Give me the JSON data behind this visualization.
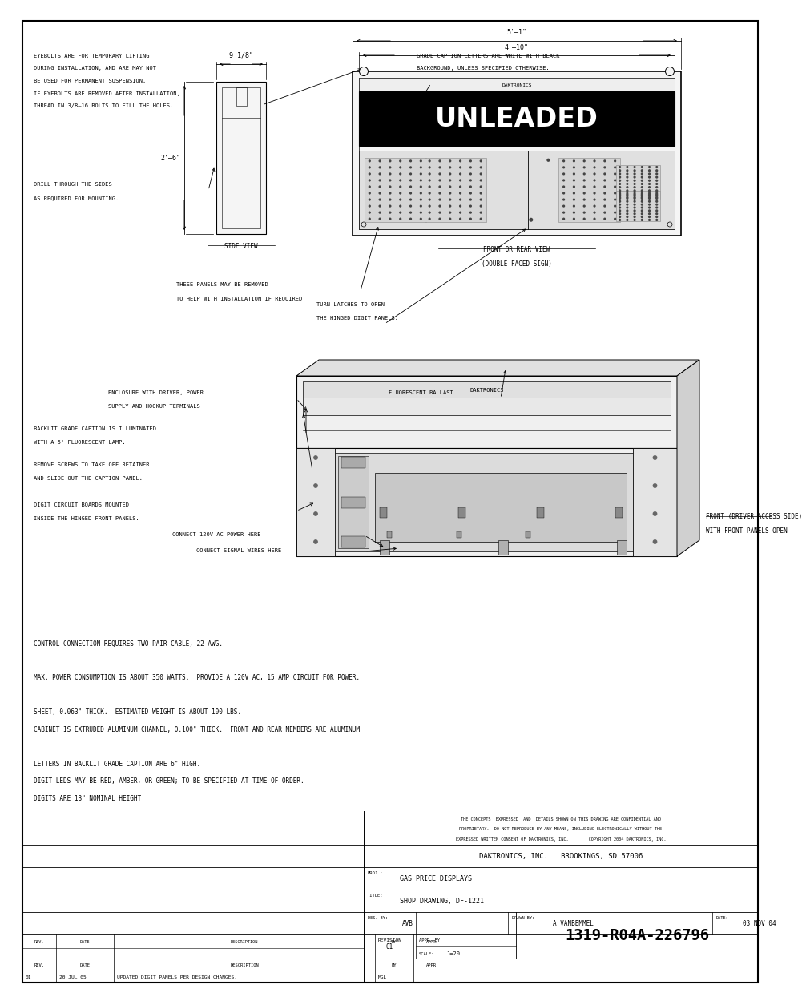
{
  "bg_color": "#ffffff",
  "line_color": "#000000",
  "text_color": "#000000",
  "page_width": 9.54,
  "page_height": 12.35,
  "title_block": {
    "confidential_text": "THE CONCEPTS  EXPRESSED  AND  DETAILS SHOWN ON THIS DRAWING ARE CONFIDENTIAL AND\nPROPRIETARY.  DO NOT REPRODUCE BY ANY MEANS, INCLUDING ELECTRONICALLY WITHOUT THE\nEXPRESSED WRITTEN CONSENT OF DAKTRONICS, INC.        COPYRIGHT 2004 DAKTRONICS, INC.",
    "company": "DAKTRONICS, INC.   BROOKINGS, SD 57006",
    "proj_label": "PROJ.:",
    "proj_value": "GAS PRICE DISPLAYS",
    "title_label": "TITLE:",
    "title_value": "SHOP DRAWING, DF-1221",
    "des_label": "DES. BY:",
    "des_value": "AVB",
    "drawn_label": "DRAWN BY:",
    "drawn_value": "A VANBEMMEL",
    "date_label": "DATE:",
    "date_value": "03 NOV 04",
    "rev_label": "REVISION",
    "rev_value": "01",
    "appr_label": "APPR. BY:",
    "scale_label": "SCALE:",
    "scale_value": "1=20",
    "drawing_num": "1319-R04A-226796",
    "rev_table_headers": [
      "REV.",
      "DATE",
      "DESCRIPTION",
      "BY",
      "APPR."
    ],
    "rev_row": [
      "01",
      "20 JUL 05",
      "UPDATED DIGIT PANELS PER DESIGN CHANGES.",
      "MGL",
      ""
    ]
  },
  "notes": [
    "DIGITS ARE 13\" NOMINAL HEIGHT.",
    "DIGIT LEDS MAY BE RED, AMBER, OR GREEN; TO BE SPECIFIED AT TIME OF ORDER.",
    "LETTERS IN BACKLIT GRADE CAPTION ARE 6\" HIGH.",
    "",
    "CABINET IS EXTRUDED ALUMINUM CHANNEL, 0.100\" THICK.  FRONT AND REAR MEMBERS ARE ALUMINUM",
    "SHEET, 0.063\" THICK.  ESTIMATED WEIGHT IS ABOUT 100 LBS.",
    "",
    "MAX. POWER CONSUMPTION IS ABOUT 350 WATTS.  PROVIDE A 120V AC, 15 AMP CIRCUIT FOR POWER.",
    "",
    "CONTROL CONNECTION REQUIRES TWO-PAIR CABLE, 22 AWG."
  ]
}
